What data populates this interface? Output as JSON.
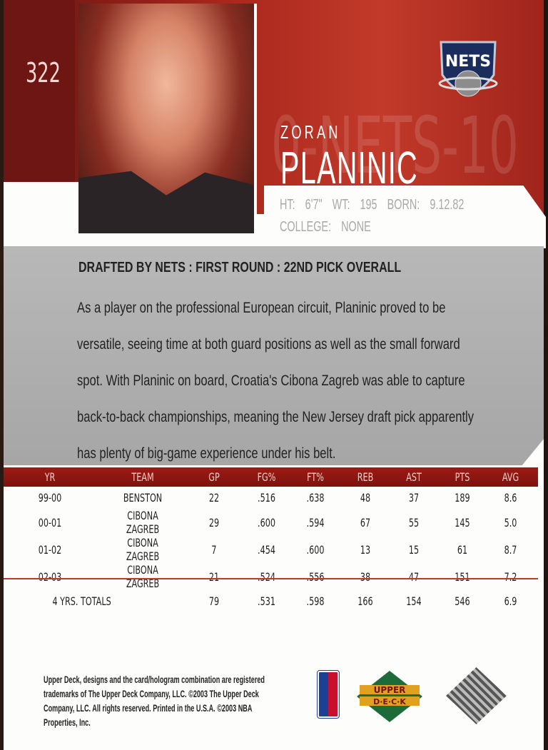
{
  "card": {
    "number": "322",
    "ghost_text": "0-NETS-10"
  },
  "team_logo": {
    "text": "NETS"
  },
  "player": {
    "first_name": "ZORAN",
    "last_name": "PLANINIC"
  },
  "vitals": {
    "height": "HT: 6'7\"",
    "weight": "WT: 195",
    "born": "BORN: 9.12.82",
    "college": "COLLEGE: NONE"
  },
  "draft": "DRAFTED BY NETS : FIRST ROUND : 22ND PICK OVERALL",
  "bio": "As a player on the professional European circuit, Planinic proved to be versatile, seeing time at both guard positions as well as the small forward spot. With Planinic on board, Croatia's Cibona Zagreb was able to capture back-to-back championships, meaning the New Jersey draft pick apparently has plenty of big-game experience under his belt.",
  "stats": {
    "headers": [
      "YR",
      "TEAM",
      "GP",
      "FG%",
      "FT%",
      "REB",
      "AST",
      "PTS",
      "AVG"
    ],
    "rows": [
      [
        "99-00",
        "BENSTON",
        "22",
        ".516",
        ".638",
        "48",
        "37",
        "189",
        "8.6"
      ],
      [
        "00-01",
        "CIBONA ZAGREB",
        "29",
        ".600",
        ".594",
        "67",
        "55",
        "145",
        "5.0"
      ],
      [
        "01-02",
        "CIBONA ZAGREB",
        "7",
        ".454",
        ".600",
        "13",
        "15",
        "61",
        "8.7"
      ],
      [
        "02-03",
        "CIBONA ZAGREB",
        "21",
        ".524",
        ".556",
        "38",
        "47",
        "151",
        "7.2"
      ]
    ],
    "totals": {
      "label": "4 YRS. TOTALS",
      "values": [
        "79",
        ".531",
        ".598",
        "166",
        "154",
        "546",
        "6.9"
      ]
    }
  },
  "legal": "Upper Deck, designs and the card/hologram combination are registered trademarks of The Upper Deck Company, LLC. ©2003 The Upper Deck Company, LLC. All rights reserved. Printed in the U.S.A. ©2003 NBA Properties, Inc.",
  "brand": {
    "upper": "UPPER",
    "deck": "D·E·C·K",
    "nba": "NBA"
  },
  "colors": {
    "red": "#a8261c",
    "gray": "#b0b0b0",
    "green": "#1e6b3a",
    "gold": "#e0a020"
  }
}
